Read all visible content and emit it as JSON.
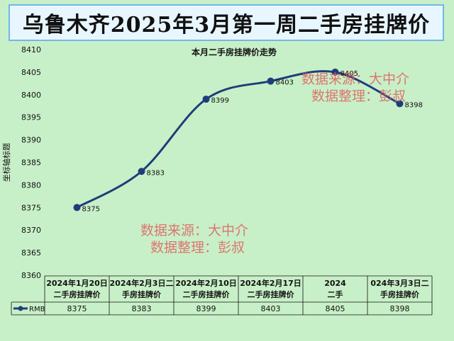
{
  "header": {
    "title": "乌鲁木齐2025年3月第一周二手房挂牌价"
  },
  "watermarks": [
    {
      "line1": "数据来源：大中介",
      "line2": "数据整理：彭叔"
    },
    {
      "line1": "数据来源：大中介",
      "line2": "数据整理：彭叔"
    }
  ],
  "chart_data": {
    "type": "line",
    "title": "本月二手房挂牌价走势",
    "ylabel": "坐标轴标题",
    "ylim": [
      8360,
      8410
    ],
    "yticks": [
      8360,
      8365,
      8370,
      8375,
      8380,
      8385,
      8390,
      8395,
      8400,
      8405,
      8410
    ],
    "categories": [
      [
        "2024年1月20日",
        "二手房挂牌价"
      ],
      [
        "2024年2月3日二",
        "手房挂牌价"
      ],
      [
        "2024年2月10日",
        "二手房挂牌价"
      ],
      [
        "2024年2月17日",
        "二手房挂牌价"
      ],
      [
        "2024",
        "二手"
      ],
      [
        "024年3月3日二",
        "手房挂牌价"
      ]
    ],
    "series": [
      {
        "name": "RMB",
        "values": [
          8375,
          8383,
          8399,
          8403,
          8405,
          8398
        ]
      }
    ],
    "colors": {
      "line": "#1f3d7a",
      "background": "#c8f0c8"
    },
    "legend": "table-left",
    "grid": false
  }
}
